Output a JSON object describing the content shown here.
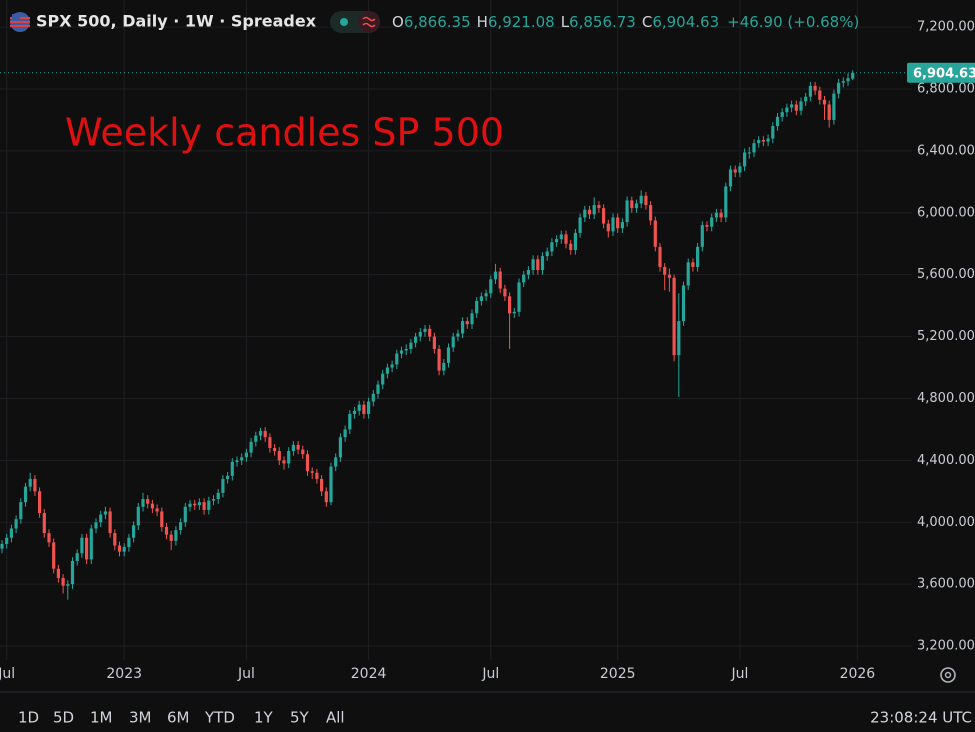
{
  "chart_data": {
    "type": "candlestick",
    "title": "SPX 500, Daily · 1W · Spreadex",
    "ohlc_legend": [
      {
        "key": "O",
        "value": "6,866.35"
      },
      {
        "key": "H",
        "value": "6,921.08"
      },
      {
        "key": "L",
        "value": "6,856.73"
      },
      {
        "key": "C",
        "value": "6,904.63"
      }
    ],
    "change": "+46.90 (+0.68%)",
    "annotation": "Weekly candles SP 500",
    "last_price": {
      "value": 6904.63,
      "label": "6,904.63"
    },
    "up_color": "#26a69a",
    "down_color": "#ef5350",
    "ylim": [
      3110,
      7375
    ],
    "yticks": [
      {
        "value": 3200,
        "label": "3,200.00"
      },
      {
        "value": 3600,
        "label": "3,600.00"
      },
      {
        "value": 4000,
        "label": "4,000.00"
      },
      {
        "value": 4400,
        "label": "4,400.00"
      },
      {
        "value": 4800,
        "label": "4,800.00"
      },
      {
        "value": 5200,
        "label": "5,200.00"
      },
      {
        "value": 5600,
        "label": "5,600.00"
      },
      {
        "value": 6000,
        "label": "6,000.00"
      },
      {
        "value": 6400,
        "label": "6,400.00"
      },
      {
        "value": 6800,
        "label": "6,800.00"
      },
      {
        "value": 7200,
        "label": "7,200.00"
      }
    ],
    "xticks": [
      {
        "value": 1,
        "label": "Jul"
      },
      {
        "value": 26,
        "label": "2023"
      },
      {
        "value": 52,
        "label": "Jul"
      },
      {
        "value": 78,
        "label": "2024"
      },
      {
        "value": 104,
        "label": "Jul"
      },
      {
        "value": 131,
        "label": "2025"
      },
      {
        "value": 157,
        "label": "Jul"
      },
      {
        "value": 182,
        "label": "2026"
      }
    ],
    "grid": true,
    "candles": [
      [
        3830,
        3885,
        3800,
        3860
      ],
      [
        3860,
        3925,
        3830,
        3900
      ],
      [
        3900,
        3985,
        3870,
        3960
      ],
      [
        3960,
        4045,
        3930,
        4020
      ],
      [
        4020,
        4155,
        3990,
        4130
      ],
      [
        4130,
        4255,
        4100,
        4230
      ],
      [
        4230,
        4320,
        4200,
        4280
      ],
      [
        4280,
        4305,
        4170,
        4200
      ],
      [
        4200,
        4225,
        4030,
        4060
      ],
      [
        4060,
        4085,
        3900,
        3930
      ],
      [
        3930,
        3955,
        3840,
        3870
      ],
      [
        3870,
        3895,
        3670,
        3700
      ],
      [
        3700,
        3725,
        3610,
        3640
      ],
      [
        3640,
        3665,
        3540,
        3590
      ],
      [
        3590,
        3625,
        3500,
        3600
      ],
      [
        3600,
        3775,
        3570,
        3750
      ],
      [
        3750,
        3825,
        3720,
        3800
      ],
      [
        3800,
        3925,
        3770,
        3900
      ],
      [
        3900,
        3925,
        3730,
        3760
      ],
      [
        3760,
        3985,
        3730,
        3960
      ],
      [
        3960,
        4025,
        3930,
        4000
      ],
      [
        4000,
        4075,
        3970,
        4050
      ],
      [
        4050,
        4100,
        4020,
        4070
      ],
      [
        4070,
        4095,
        3900,
        3930
      ],
      [
        3930,
        3955,
        3820,
        3850
      ],
      [
        3850,
        3875,
        3780,
        3810
      ],
      [
        3810,
        3865,
        3780,
        3840
      ],
      [
        3840,
        3925,
        3810,
        3900
      ],
      [
        3900,
        4005,
        3870,
        3980
      ],
      [
        3980,
        4125,
        3950,
        4100
      ],
      [
        4100,
        4190,
        4070,
        4150
      ],
      [
        4150,
        4175,
        4090,
        4120
      ],
      [
        4120,
        4145,
        4060,
        4090
      ],
      [
        4090,
        4115,
        4040,
        4070
      ],
      [
        4070,
        4095,
        3940,
        3970
      ],
      [
        3970,
        3995,
        3890,
        3920
      ],
      [
        3920,
        3945,
        3820,
        3880
      ],
      [
        3880,
        3975,
        3850,
        3950
      ],
      [
        3950,
        4025,
        3920,
        4000
      ],
      [
        4000,
        4125,
        3970,
        4100
      ],
      [
        4100,
        4145,
        4070,
        4120
      ],
      [
        4120,
        4145,
        4080,
        4110
      ],
      [
        4110,
        4155,
        4080,
        4130
      ],
      [
        4130,
        4155,
        4050,
        4080
      ],
      [
        4080,
        4165,
        4050,
        4140
      ],
      [
        4140,
        4175,
        4110,
        4150
      ],
      [
        4150,
        4215,
        4120,
        4190
      ],
      [
        4190,
        4305,
        4160,
        4280
      ],
      [
        4280,
        4325,
        4250,
        4300
      ],
      [
        4300,
        4415,
        4270,
        4390
      ],
      [
        4390,
        4425,
        4360,
        4400
      ],
      [
        4400,
        4445,
        4370,
        4420
      ],
      [
        4420,
        4475,
        4390,
        4450
      ],
      [
        4450,
        4545,
        4420,
        4520
      ],
      [
        4520,
        4585,
        4490,
        4560
      ],
      [
        4560,
        4610,
        4530,
        4590
      ],
      [
        4590,
        4615,
        4520,
        4550
      ],
      [
        4550,
        4575,
        4450,
        4480
      ],
      [
        4480,
        4505,
        4430,
        4460
      ],
      [
        4460,
        4485,
        4370,
        4400
      ],
      [
        4400,
        4425,
        4340,
        4380
      ],
      [
        4380,
        4485,
        4350,
        4460
      ],
      [
        4460,
        4525,
        4430,
        4500
      ],
      [
        4500,
        4525,
        4440,
        4470
      ],
      [
        4470,
        4495,
        4410,
        4440
      ],
      [
        4440,
        4465,
        4300,
        4330
      ],
      [
        4330,
        4355,
        4280,
        4320
      ],
      [
        4320,
        4345,
        4250,
        4280
      ],
      [
        4280,
        4305,
        4170,
        4200
      ],
      [
        4200,
        4225,
        4100,
        4130
      ],
      [
        4130,
        4385,
        4110,
        4360
      ],
      [
        4360,
        4445,
        4330,
        4420
      ],
      [
        4420,
        4575,
        4390,
        4550
      ],
      [
        4550,
        4625,
        4520,
        4600
      ],
      [
        4600,
        4725,
        4570,
        4700
      ],
      [
        4700,
        4745,
        4670,
        4720
      ],
      [
        4720,
        4785,
        4690,
        4760
      ],
      [
        4760,
        4785,
        4670,
        4700
      ],
      [
        4700,
        4805,
        4670,
        4780
      ],
      [
        4780,
        4855,
        4750,
        4830
      ],
      [
        4830,
        4915,
        4800,
        4890
      ],
      [
        4890,
        4985,
        4860,
        4960
      ],
      [
        4960,
        5025,
        4930,
        5000
      ],
      [
        5000,
        5045,
        4970,
        5020
      ],
      [
        5020,
        5115,
        4990,
        5090
      ],
      [
        5090,
        5135,
        5060,
        5110
      ],
      [
        5110,
        5150,
        5080,
        5120
      ],
      [
        5120,
        5185,
        5090,
        5160
      ],
      [
        5160,
        5225,
        5130,
        5200
      ],
      [
        5200,
        5255,
        5170,
        5230
      ],
      [
        5230,
        5275,
        5200,
        5250
      ],
      [
        5250,
        5275,
        5170,
        5200
      ],
      [
        5200,
        5225,
        5090,
        5120
      ],
      [
        5120,
        5145,
        4950,
        4980
      ],
      [
        4980,
        5055,
        4950,
        5030
      ],
      [
        5030,
        5155,
        5000,
        5130
      ],
      [
        5130,
        5225,
        5100,
        5200
      ],
      [
        5200,
        5245,
        5170,
        5220
      ],
      [
        5220,
        5325,
        5190,
        5300
      ],
      [
        5300,
        5325,
        5250,
        5280
      ],
      [
        5280,
        5375,
        5250,
        5350
      ],
      [
        5350,
        5455,
        5320,
        5430
      ],
      [
        5430,
        5485,
        5400,
        5460
      ],
      [
        5460,
        5505,
        5430,
        5480
      ],
      [
        5480,
        5595,
        5450,
        5570
      ],
      [
        5570,
        5670,
        5540,
        5620
      ],
      [
        5620,
        5645,
        5480,
        5510
      ],
      [
        5510,
        5535,
        5430,
        5460
      ],
      [
        5460,
        5485,
        5120,
        5350
      ],
      [
        5350,
        5385,
        5320,
        5360
      ],
      [
        5360,
        5575,
        5330,
        5550
      ],
      [
        5550,
        5625,
        5520,
        5600
      ],
      [
        5600,
        5655,
        5570,
        5630
      ],
      [
        5630,
        5725,
        5600,
        5700
      ],
      [
        5700,
        5725,
        5600,
        5630
      ],
      [
        5630,
        5745,
        5600,
        5720
      ],
      [
        5720,
        5775,
        5690,
        5750
      ],
      [
        5750,
        5835,
        5720,
        5810
      ],
      [
        5810,
        5855,
        5780,
        5830
      ],
      [
        5830,
        5885,
        5800,
        5860
      ],
      [
        5860,
        5885,
        5770,
        5800
      ],
      [
        5800,
        5825,
        5730,
        5760
      ],
      [
        5760,
        5895,
        5730,
        5870
      ],
      [
        5870,
        5995,
        5840,
        5970
      ],
      [
        5970,
        6045,
        5940,
        6020
      ],
      [
        6020,
        6045,
        5960,
        5990
      ],
      [
        5990,
        6100,
        5960,
        6050
      ],
      [
        6050,
        6075,
        6000,
        6030
      ],
      [
        6030,
        6055,
        5900,
        5930
      ],
      [
        5930,
        5955,
        5840,
        5880
      ],
      [
        5880,
        5995,
        5850,
        5970
      ],
      [
        5970,
        5995,
        5870,
        5900
      ],
      [
        5900,
        5965,
        5870,
        5940
      ],
      [
        5940,
        6105,
        5910,
        6080
      ],
      [
        6080,
        6105,
        6000,
        6030
      ],
      [
        6030,
        6085,
        6000,
        6060
      ],
      [
        6060,
        6145,
        6030,
        6110
      ],
      [
        6110,
        6135,
        6020,
        6050
      ],
      [
        6050,
        6075,
        5920,
        5950
      ],
      [
        5950,
        5975,
        5750,
        5780
      ],
      [
        5780,
        5805,
        5620,
        5650
      ],
      [
        5650,
        5675,
        5500,
        5600
      ],
      [
        5600,
        5640,
        5490,
        5580
      ],
      [
        5580,
        5600,
        5040,
        5080
      ],
      [
        5080,
        5480,
        4810,
        5300
      ],
      [
        5300,
        5555,
        5270,
        5530
      ],
      [
        5530,
        5705,
        5500,
        5680
      ],
      [
        5680,
        5705,
        5620,
        5650
      ],
      [
        5650,
        5805,
        5620,
        5780
      ],
      [
        5780,
        5945,
        5750,
        5920
      ],
      [
        5920,
        5945,
        5880,
        5910
      ],
      [
        5910,
        5995,
        5880,
        5970
      ],
      [
        5970,
        6025,
        5940,
        6000
      ],
      [
        6000,
        6025,
        5940,
        5970
      ],
      [
        5970,
        6195,
        5940,
        6170
      ],
      [
        6170,
        6305,
        6140,
        6280
      ],
      [
        6280,
        6305,
        6230,
        6260
      ],
      [
        6260,
        6325,
        6230,
        6300
      ],
      [
        6300,
        6415,
        6270,
        6390
      ],
      [
        6390,
        6425,
        6350,
        6390
      ],
      [
        6390,
        6475,
        6360,
        6450
      ],
      [
        6450,
        6495,
        6420,
        6470
      ],
      [
        6470,
        6495,
        6430,
        6460
      ],
      [
        6460,
        6505,
        6430,
        6480
      ],
      [
        6480,
        6585,
        6450,
        6560
      ],
      [
        6560,
        6645,
        6530,
        6620
      ],
      [
        6620,
        6675,
        6590,
        6650
      ],
      [
        6650,
        6705,
        6620,
        6680
      ],
      [
        6680,
        6725,
        6650,
        6700
      ],
      [
        6700,
        6725,
        6630,
        6660
      ],
      [
        6660,
        6745,
        6630,
        6720
      ],
      [
        6720,
        6775,
        6690,
        6750
      ],
      [
        6750,
        6845,
        6720,
        6820
      ],
      [
        6820,
        6845,
        6760,
        6790
      ],
      [
        6790,
        6815,
        6700,
        6730
      ],
      [
        6730,
        6755,
        6600,
        6700
      ],
      [
        6700,
        6725,
        6550,
        6600
      ],
      [
        6600,
        6795,
        6570,
        6770
      ],
      [
        6770,
        6865,
        6740,
        6840
      ],
      [
        6840,
        6875,
        6810,
        6850
      ],
      [
        6850,
        6900,
        6820,
        6870
      ],
      [
        6866.35,
        6921.08,
        6856.73,
        6904.63
      ]
    ]
  },
  "toolbar": {
    "ranges": [
      "1D",
      "5D",
      "1M",
      "3M",
      "6M",
      "YTD",
      "1Y",
      "5Y",
      "All"
    ],
    "clock": "23:08:24 UTC"
  }
}
